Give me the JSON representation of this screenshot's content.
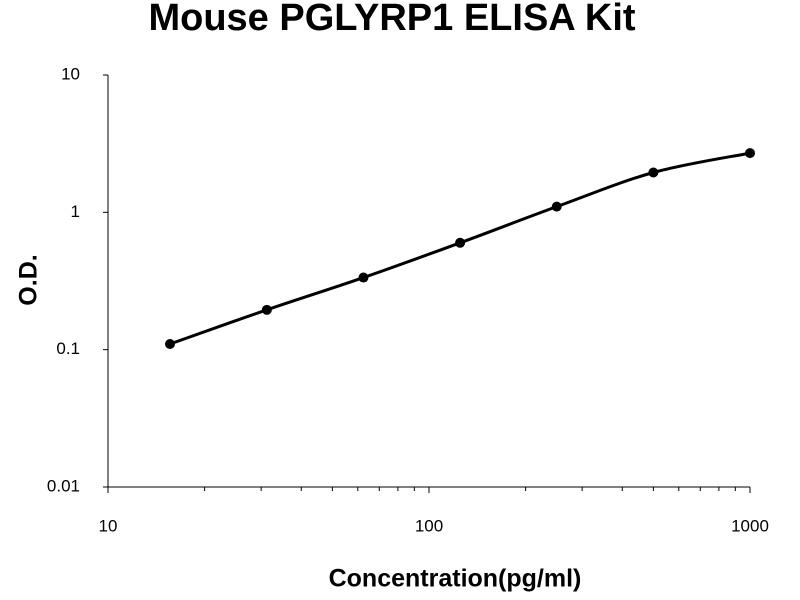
{
  "chart_data": {
    "type": "scatter",
    "title": "Mouse PGLYRP1 ELISA Kit",
    "x_label": "Concentration(pg/ml)",
    "y_label": "O.D.",
    "x_scale": "log",
    "y_scale": "log",
    "xlim": [
      10,
      1000
    ],
    "xticks": [
      10,
      100,
      1000
    ],
    "x_minor_ticks": true,
    "ylim": [
      0.01,
      10
    ],
    "yticks": [
      0.01,
      0.1,
      1,
      10
    ],
    "series": [
      {
        "color": "#000000",
        "x": [
          15.6,
          31.25,
          62.5,
          125,
          250,
          500,
          1000
        ],
        "values": [
          0.11,
          0.195,
          0.335,
          0.6,
          1.1,
          1.95,
          2.7
        ]
      }
    ]
  }
}
